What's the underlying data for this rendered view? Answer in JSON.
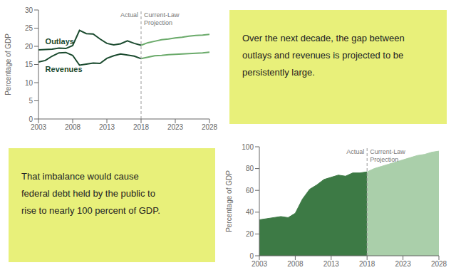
{
  "chart_data": [
    {
      "type": "line",
      "x": [
        2003,
        2004,
        2005,
        2006,
        2007,
        2008,
        2009,
        2010,
        2011,
        2012,
        2013,
        2014,
        2015,
        2016,
        2017,
        2018,
        2019,
        2020,
        2021,
        2022,
        2023,
        2024,
        2025,
        2026,
        2027,
        2028
      ],
      "series": [
        {
          "name": "Outlays",
          "color": "#1a4a2e",
          "values": [
            19.0,
            19.1,
            19.2,
            19.5,
            19.4,
            20.2,
            24.4,
            23.5,
            23.4,
            22.0,
            20.8,
            20.4,
            20.7,
            21.5,
            20.8,
            20.3,
            null,
            null,
            null,
            null,
            null,
            null,
            null,
            null,
            null,
            null
          ]
        },
        {
          "color": "#6aaa6a",
          "values": [
            null,
            null,
            null,
            null,
            null,
            null,
            null,
            null,
            null,
            null,
            null,
            null,
            null,
            null,
            null,
            20.3,
            21.0,
            21.4,
            21.8,
            22.0,
            22.3,
            22.5,
            22.8,
            23.0,
            23.1,
            23.3
          ]
        },
        {
          "name": "Revenues",
          "color": "#1a4a2e",
          "values": [
            15.7,
            16.1,
            17.3,
            18.2,
            18.3,
            17.5,
            14.8,
            15.1,
            15.4,
            15.3,
            16.7,
            17.4,
            17.9,
            17.6,
            17.3,
            16.6,
            null,
            null,
            null,
            null,
            null,
            null,
            null,
            null,
            null,
            null
          ]
        },
        {
          "color": "#6aaa6a",
          "values": [
            null,
            null,
            null,
            null,
            null,
            null,
            null,
            null,
            null,
            null,
            null,
            null,
            null,
            null,
            null,
            16.6,
            17.0,
            17.4,
            17.5,
            17.7,
            17.8,
            17.9,
            18.0,
            18.1,
            18.2,
            18.4
          ]
        }
      ],
      "xlim": [
        2003,
        2028
      ],
      "xticks": [
        2003,
        2008,
        2013,
        2018,
        2023,
        2028
      ],
      "ylim": [
        0,
        30
      ],
      "yticks": [
        0,
        5,
        10,
        15,
        20,
        25,
        30
      ],
      "ylabel": "Percentage of GDP",
      "vline": 2018,
      "annotations": [
        "Actual",
        "Current-Law\nProjection"
      ],
      "note": [
        "Over the next decade, the gap between",
        "outlays and revenues is projected to be",
        "persistently large."
      ]
    },
    {
      "type": "area",
      "x": [
        2003,
        2004,
        2005,
        2006,
        2007,
        2008,
        2009,
        2010,
        2011,
        2012,
        2013,
        2014,
        2015,
        2016,
        2017,
        2018,
        2019,
        2020,
        2021,
        2022,
        2023,
        2024,
        2025,
        2026,
        2027,
        2028
      ],
      "series": [
        {
          "color": "#3d7a45",
          "values": [
            33,
            34,
            35,
            36,
            35,
            39,
            52,
            61,
            65,
            70,
            72,
            74,
            73,
            76,
            76,
            77,
            null,
            null,
            null,
            null,
            null,
            null,
            null,
            null,
            null,
            null
          ]
        },
        {
          "color": "#aacfaa",
          "values": [
            null,
            null,
            null,
            null,
            null,
            null,
            null,
            null,
            null,
            null,
            null,
            null,
            null,
            null,
            null,
            77,
            80,
            82,
            84,
            86,
            88,
            90,
            92,
            93,
            95,
            96
          ]
        }
      ],
      "xlim": [
        2003,
        2028
      ],
      "xticks": [
        2003,
        2008,
        2013,
        2018,
        2023,
        2028
      ],
      "ylim": [
        0,
        100
      ],
      "yticks": [
        0,
        20,
        40,
        60,
        80,
        100
      ],
      "ylabel": "Percentage of GDP",
      "vline": 2018,
      "annotations": [
        "Actual",
        "Current-Law\nProjection"
      ],
      "note": [
        "That imbalance would cause",
        "federal debt held by the public to",
        "rise to nearly 100 percent of GDP."
      ]
    }
  ]
}
